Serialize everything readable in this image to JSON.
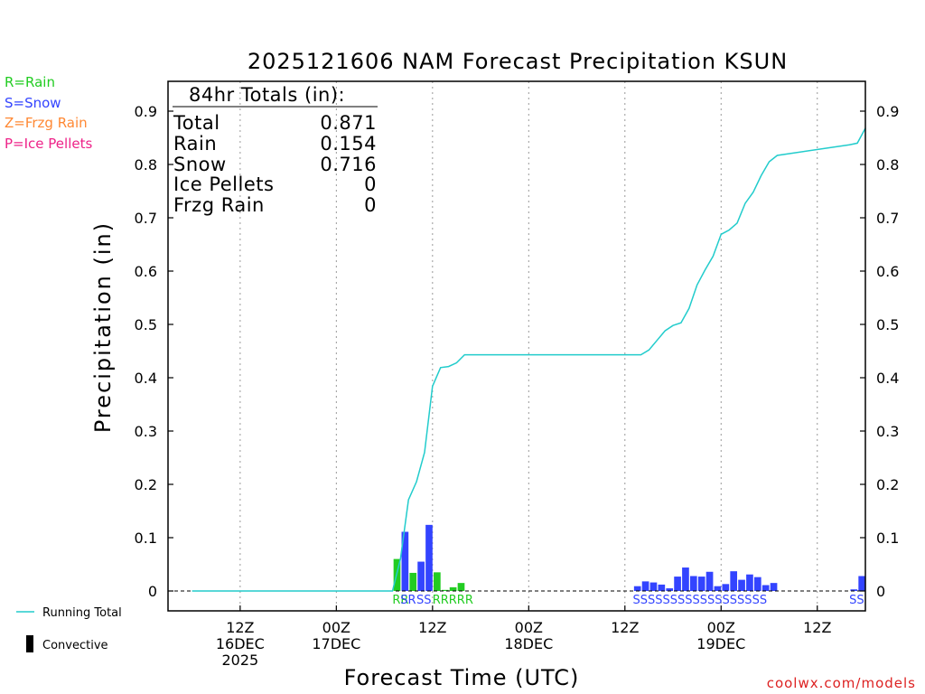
{
  "chart_data": {
    "type": "bar",
    "title": "2025121606 NAM Forecast Precipitation KSUN",
    "xlabel": "Forecast Time (UTC)",
    "ylabel": "Precipitation (in)",
    "ylim": [
      0,
      0.95
    ],
    "xlim_hours": [
      -3,
      84
    ],
    "yticks": [
      0,
      0.1,
      0.2,
      0.3,
      0.4,
      0.5,
      0.6,
      0.7,
      0.8,
      0.9
    ],
    "ytick_labels": [
      "0",
      "0.1",
      "0.2",
      "0.3",
      "0.4",
      "0.5",
      "0.6",
      "0.7",
      "0.8",
      "0.9"
    ],
    "xticks": [
      {
        "hour": 6,
        "labels": [
          "12Z",
          "16DEC",
          "2025"
        ]
      },
      {
        "hour": 18,
        "labels": [
          "00Z",
          "17DEC"
        ]
      },
      {
        "hour": 30,
        "labels": [
          "12Z"
        ]
      },
      {
        "hour": 42,
        "labels": [
          "00Z",
          "18DEC"
        ]
      },
      {
        "hour": 54,
        "labels": [
          "12Z"
        ]
      },
      {
        "hour": 66,
        "labels": [
          "00Z",
          "19DEC"
        ]
      },
      {
        "hour": 78,
        "labels": [
          "12Z"
        ]
      }
    ],
    "ptype_legend": [
      {
        "label": "R=Rain",
        "color": "#22cc22"
      },
      {
        "label": "S=Snow",
        "color": "#3344ff"
      },
      {
        "label": "Z=Frzg Rain",
        "color": "#ff8833"
      },
      {
        "label": "P=Ice Pellets",
        "color": "#ee2288"
      }
    ],
    "series_legend": [
      {
        "label": "Running Total",
        "color": "#22cccc",
        "kind": "line"
      },
      {
        "label": "Convective",
        "color": "#000000",
        "kind": "bar"
      }
    ],
    "totals": {
      "header": "84hr Totals (in):",
      "rows": [
        {
          "label": "Total",
          "value": "0.871"
        },
        {
          "label": "Rain",
          "value": "0.154"
        },
        {
          "label": "Snow",
          "value": "0.716"
        },
        {
          "label": "Ice Pellets",
          "value": "0"
        },
        {
          "label": "Frzg Rain",
          "value": "0"
        }
      ]
    },
    "bars": [
      {
        "hour": 26,
        "value": 0.06,
        "ptype": "R"
      },
      {
        "hour": 27,
        "value": 0.111,
        "ptype": "S"
      },
      {
        "hour": 28,
        "value": 0.034,
        "ptype": "R"
      },
      {
        "hour": 29,
        "value": 0.055,
        "ptype": "S"
      },
      {
        "hour": 30,
        "value": 0.124,
        "ptype": "S"
      },
      {
        "hour": 31,
        "value": 0.035,
        "ptype": "R"
      },
      {
        "hour": 32,
        "value": 0.002,
        "ptype": "R"
      },
      {
        "hour": 33,
        "value": 0.007,
        "ptype": "R"
      },
      {
        "hour": 34,
        "value": 0.015,
        "ptype": "R"
      },
      {
        "hour": 56,
        "value": 0.009,
        "ptype": "S"
      },
      {
        "hour": 57,
        "value": 0.018,
        "ptype": "S"
      },
      {
        "hour": 58,
        "value": 0.016,
        "ptype": "S"
      },
      {
        "hour": 59,
        "value": 0.012,
        "ptype": "S"
      },
      {
        "hour": 60,
        "value": 0.005,
        "ptype": "S"
      },
      {
        "hour": 61,
        "value": 0.027,
        "ptype": "S"
      },
      {
        "hour": 62,
        "value": 0.044,
        "ptype": "S"
      },
      {
        "hour": 63,
        "value": 0.028,
        "ptype": "S"
      },
      {
        "hour": 64,
        "value": 0.027,
        "ptype": "S"
      },
      {
        "hour": 65,
        "value": 0.036,
        "ptype": "S"
      },
      {
        "hour": 66,
        "value": 0.009,
        "ptype": "S"
      },
      {
        "hour": 67,
        "value": 0.013,
        "ptype": "S"
      },
      {
        "hour": 68,
        "value": 0.037,
        "ptype": "S"
      },
      {
        "hour": 69,
        "value": 0.021,
        "ptype": "S"
      },
      {
        "hour": 70,
        "value": 0.031,
        "ptype": "S"
      },
      {
        "hour": 71,
        "value": 0.026,
        "ptype": "S"
      },
      {
        "hour": 72,
        "value": 0.011,
        "ptype": "S"
      },
      {
        "hour": 73,
        "value": 0.015,
        "ptype": "S"
      },
      {
        "hour": 83,
        "value": 0.003,
        "ptype": "S"
      },
      {
        "hour": 84,
        "value": 0.028,
        "ptype": "S"
      }
    ],
    "ptype_labels": [
      {
        "hour": 26,
        "text": "RR",
        "ptype": "R"
      },
      {
        "hour": 27,
        "text": "SR",
        "ptype": "S"
      },
      {
        "hour": 29,
        "text": "SS",
        "ptype": "S"
      },
      {
        "hour": 31,
        "text": "RRRRR",
        "ptype": "R"
      },
      {
        "hour": 56,
        "text": "SSSSSSSSSSSSSSSSSS",
        "ptype": "S"
      },
      {
        "hour": 83,
        "text": "SS",
        "ptype": "S"
      }
    ],
    "running_total": {
      "hours": [
        0,
        25,
        26,
        27,
        28,
        29,
        30,
        31,
        32,
        33,
        34,
        56,
        57,
        58,
        59,
        60,
        61,
        62,
        63,
        64,
        65,
        66,
        67,
        68,
        69,
        70,
        71,
        72,
        73,
        82,
        83,
        84
      ],
      "values": [
        0,
        0,
        0.06,
        0.171,
        0.205,
        0.26,
        0.384,
        0.419,
        0.421,
        0.428,
        0.443,
        0.443,
        0.452,
        0.47,
        0.488,
        0.498,
        0.503,
        0.53,
        0.574,
        0.602,
        0.628,
        0.669,
        0.677,
        0.69,
        0.727,
        0.748,
        0.779,
        0.805,
        0.817,
        0.837,
        0.84,
        0.868
      ]
    },
    "colors": {
      "rain": "#22cc22",
      "snow": "#3344ff",
      "frzg": "#ff8833",
      "ice": "#ee2288",
      "running_total": "#22cccc",
      "grid": "#999999",
      "credit": "#dd2222"
    }
  },
  "credit": "coolwx.com/models"
}
